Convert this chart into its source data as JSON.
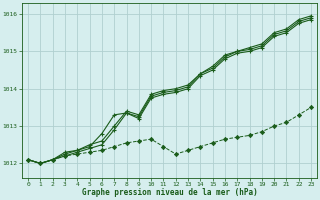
{
  "xlabel": "Graphe pression niveau de la mer (hPa)",
  "background_color": "#d6eeee",
  "grid_color": "#b0d0d0",
  "line_color": "#1a5c1a",
  "xlim": [
    -0.5,
    23.5
  ],
  "ylim": [
    1011.6,
    1016.3
  ],
  "yticks": [
    1012,
    1013,
    1014,
    1015,
    1016
  ],
  "xticks": [
    0,
    1,
    2,
    3,
    4,
    5,
    6,
    7,
    8,
    9,
    10,
    11,
    12,
    13,
    14,
    15,
    16,
    17,
    18,
    19,
    20,
    21,
    22,
    23
  ],
  "series1_x": [
    0,
    1,
    2,
    3,
    4,
    5,
    6,
    7,
    8,
    9,
    10,
    11,
    12,
    13,
    14,
    15,
    16,
    17,
    18,
    19,
    20,
    21,
    22,
    23
  ],
  "series1_y": [
    1012.1,
    1012.0,
    1012.1,
    1012.25,
    1012.35,
    1012.45,
    1012.8,
    1013.3,
    1013.35,
    1013.25,
    1013.8,
    1013.9,
    1013.95,
    1014.05,
    1014.4,
    1014.55,
    1014.85,
    1015.0,
    1015.05,
    1015.15,
    1015.45,
    1015.55,
    1015.8,
    1015.9
  ],
  "series2_x": [
    0,
    1,
    2,
    3,
    4,
    5,
    6,
    7,
    8,
    9,
    10,
    11,
    12,
    13,
    14,
    15,
    16,
    17,
    18,
    19,
    20,
    21,
    22,
    23
  ],
  "series2_y": [
    1012.1,
    1012.0,
    1012.1,
    1012.3,
    1012.35,
    1012.5,
    1012.6,
    1013.0,
    1013.4,
    1013.3,
    1013.85,
    1013.95,
    1014.0,
    1014.1,
    1014.4,
    1014.6,
    1014.9,
    1015.0,
    1015.1,
    1015.2,
    1015.5,
    1015.6,
    1015.85,
    1015.95
  ],
  "series3_x": [
    0,
    1,
    2,
    3,
    4,
    5,
    6,
    7,
    8,
    9,
    10,
    11,
    12,
    13,
    14,
    15,
    16,
    17,
    18,
    19,
    20,
    21,
    22,
    23
  ],
  "series3_y": [
    1012.1,
    1012.0,
    1012.1,
    1012.2,
    1012.3,
    1012.4,
    1012.5,
    1012.9,
    1013.35,
    1013.2,
    1013.75,
    1013.85,
    1013.9,
    1014.0,
    1014.35,
    1014.5,
    1014.8,
    1014.95,
    1015.0,
    1015.1,
    1015.4,
    1015.5,
    1015.75,
    1015.85
  ],
  "series_dashed_x": [
    0,
    1,
    2,
    3,
    4,
    5,
    6,
    7,
    8,
    9,
    10,
    11,
    12,
    13,
    14,
    15,
    16,
    17,
    18,
    19,
    20,
    21,
    22,
    23
  ],
  "series_dashed_y": [
    1012.1,
    1012.0,
    1012.1,
    1012.2,
    1012.25,
    1012.3,
    1012.35,
    1012.45,
    1012.55,
    1012.6,
    1012.65,
    1012.45,
    1012.25,
    1012.35,
    1012.45,
    1012.55,
    1012.65,
    1012.7,
    1012.75,
    1012.85,
    1013.0,
    1013.1,
    1013.3,
    1013.5
  ]
}
